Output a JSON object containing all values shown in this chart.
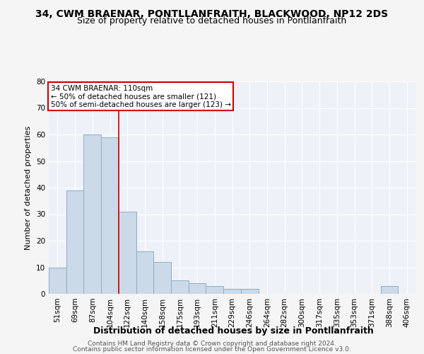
{
  "title1": "34, CWM BRAENAR, PONTLLANFRAITH, BLACKWOOD, NP12 2DS",
  "title2": "Size of property relative to detached houses in Pontllanfraith",
  "xlabel": "Distribution of detached houses by size in Pontllanfraith",
  "ylabel": "Number of detached properties",
  "categories": [
    "51sqm",
    "69sqm",
    "87sqm",
    "104sqm",
    "122sqm",
    "140sqm",
    "158sqm",
    "175sqm",
    "193sqm",
    "211sqm",
    "229sqm",
    "246sqm",
    "264sqm",
    "282sqm",
    "300sqm",
    "317sqm",
    "335sqm",
    "353sqm",
    "371sqm",
    "388sqm",
    "406sqm"
  ],
  "values": [
    10,
    39,
    60,
    59,
    31,
    16,
    12,
    5,
    4,
    3,
    2,
    2,
    0,
    0,
    0,
    0,
    0,
    0,
    0,
    3,
    0
  ],
  "bar_color": "#ccd9e8",
  "bar_edge_color": "#8aafc8",
  "red_line_x": 3.5,
  "annotation_line1": "34 CWM BRAENAR: 110sqm",
  "annotation_line2": "← 50% of detached houses are smaller (121)",
  "annotation_line3": "50% of semi-detached houses are larger (123) →",
  "annotation_box_color": "#ffffff",
  "annotation_box_edge": "#cc0000",
  "footer1": "Contains HM Land Registry data © Crown copyright and database right 2024.",
  "footer2": "Contains public sector information licensed under the Open Government Licence v3.0.",
  "ylim": [
    0,
    80
  ],
  "background_color": "#eef2f8",
  "grid_color": "#ffffff",
  "title1_fontsize": 10,
  "title2_fontsize": 9,
  "xlabel_fontsize": 9,
  "ylabel_fontsize": 8,
  "tick_fontsize": 7.5,
  "footer_fontsize": 6.5
}
